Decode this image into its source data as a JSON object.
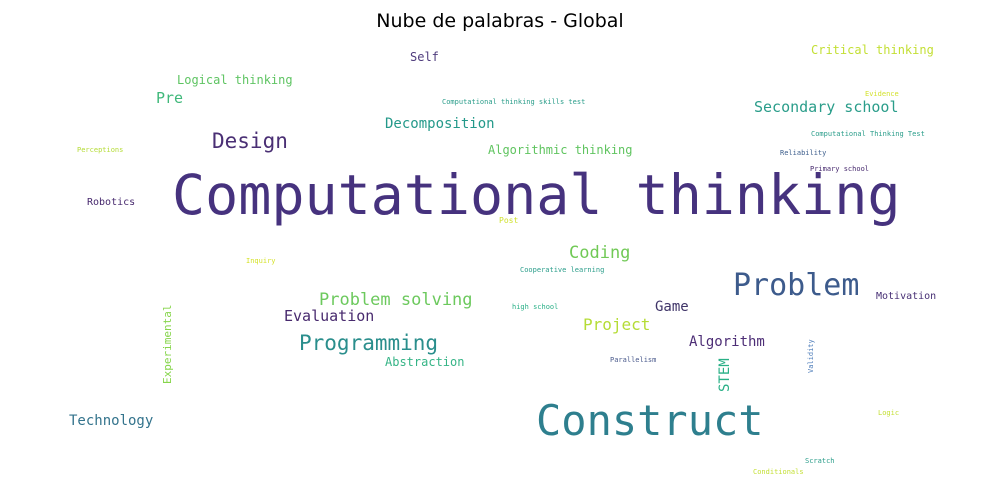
{
  "title": "Nube de palabras - Global",
  "words": [
    {
      "text": "Computational thinking",
      "color": "#46327e"
    },
    {
      "text": "Construct",
      "color": "#2e7f8e"
    },
    {
      "text": "Problem",
      "color": "#3d5b8c"
    },
    {
      "text": "Programming",
      "color": "#2a8e8c"
    },
    {
      "text": "Design",
      "color": "#4a2f74"
    },
    {
      "text": "Coding",
      "color": "#71c956"
    },
    {
      "text": "Problem solving",
      "color": "#6cc95d"
    },
    {
      "text": "Evaluation",
      "color": "#482a6e"
    },
    {
      "text": "Project",
      "color": "#b5dc36"
    },
    {
      "text": "Algorithm",
      "color": "#4d2e76"
    },
    {
      "text": "Game",
      "color": "#3f3468"
    },
    {
      "text": "Secondary school",
      "color": "#2a9d8a"
    },
    {
      "text": "Decomposition",
      "color": "#24998a"
    },
    {
      "text": "Technology",
      "color": "#33738c"
    },
    {
      "text": "Abstraction",
      "color": "#35b486"
    },
    {
      "text": "Algorithmic thinking",
      "color": "#5fc45f"
    },
    {
      "text": "Logical thinking",
      "color": "#5ec462"
    },
    {
      "text": "Critical thinking",
      "color": "#c3df33"
    },
    {
      "text": "Pre",
      "color": "#3fb87a"
    },
    {
      "text": "Self",
      "color": "#4f3c7d"
    },
    {
      "text": "STEM",
      "color": "#2ab087"
    },
    {
      "text": "Experimental",
      "color": "#86d54b"
    },
    {
      "text": "Motivation",
      "color": "#472f74"
    },
    {
      "text": "Robotics",
      "color": "#46286d"
    },
    {
      "text": "Computational thinking skills test",
      "color": "#2a9d8a"
    },
    {
      "text": "Computational Thinking Test",
      "color": "#2a9d8a"
    },
    {
      "text": "Evidence",
      "color": "#d3e22e"
    },
    {
      "text": "Perceptions",
      "color": "#b5dc36"
    },
    {
      "text": "Reliability",
      "color": "#3d5e8c"
    },
    {
      "text": "Primary school",
      "color": "#46286d"
    },
    {
      "text": "Post",
      "color": "#cfe12c"
    },
    {
      "text": "Inquiry",
      "color": "#d5e22b"
    },
    {
      "text": "Cooperative learning",
      "color": "#2a9d8a"
    },
    {
      "text": "high school",
      "color": "#2ab087"
    },
    {
      "text": "Parallelism",
      "color": "#4a5a8c"
    },
    {
      "text": "Validity",
      "color": "#4a7ab8"
    },
    {
      "text": "Logic",
      "color": "#c3df33"
    },
    {
      "text": "Scratch",
      "color": "#2a9d8a"
    },
    {
      "text": "Conditionals",
      "color": "#c3df33"
    }
  ]
}
